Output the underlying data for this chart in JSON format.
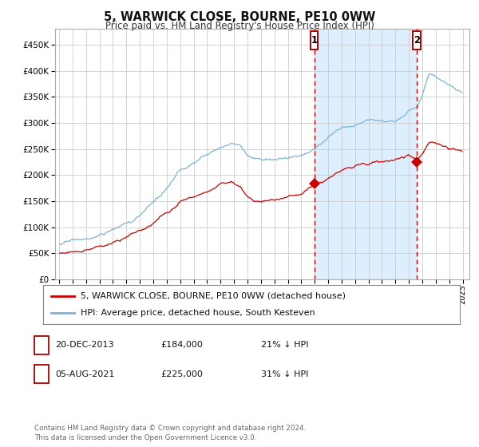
{
  "title": "5, WARWICK CLOSE, BOURNE, PE10 0WW",
  "subtitle": "Price paid vs. HM Land Registry's House Price Index (HPI)",
  "sale1_date": "20-DEC-2013",
  "sale1_price": 184000,
  "sale1_label": "21% ↓ HPI",
  "sale2_date": "05-AUG-2021",
  "sale2_price": 225000,
  "sale2_label": "31% ↓ HPI",
  "sale1_x": 2013.97,
  "sale2_x": 2021.59,
  "hpi_color": "#7ab4d8",
  "price_color": "#cc0000",
  "shaded_color": "#ddeeff",
  "vline_color": "#cc0000",
  "background_color": "#ffffff",
  "grid_color": "#cccccc",
  "legend_line1": "5, WARWICK CLOSE, BOURNE, PE10 0WW (detached house)",
  "legend_line2": "HPI: Average price, detached house, South Kesteven",
  "footer": "Contains HM Land Registry data © Crown copyright and database right 2024.\nThis data is licensed under the Open Government Licence v3.0.",
  "ylim": [
    0,
    480000
  ],
  "xlim_start": 1994.7,
  "xlim_end": 2025.5
}
